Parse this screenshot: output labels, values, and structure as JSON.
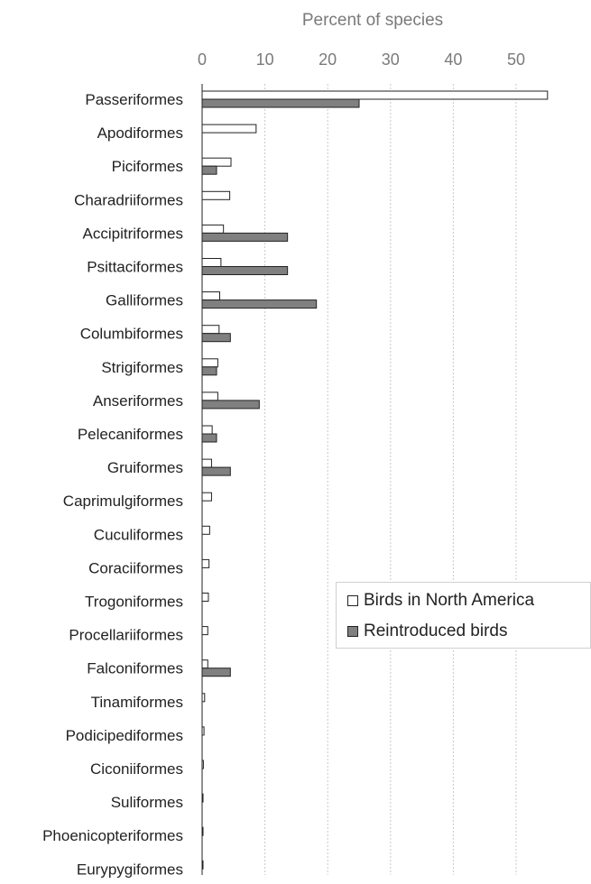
{
  "chart_data": {
    "type": "bar",
    "orientation": "horizontal",
    "title": "",
    "xlabel": "Percent of species",
    "ylabel": "",
    "xlim": [
      0,
      55
    ],
    "xticks": [
      0,
      10,
      20,
      30,
      40,
      50
    ],
    "grid": true,
    "legend_position": "right",
    "categories": [
      "Passeriformes",
      "Apodiformes",
      "Piciformes",
      "Charadriiformes",
      "Accipitriformes",
      "Psittaciformes",
      "Galliformes",
      "Columbiformes",
      "Strigiformes",
      "Anseriformes",
      "Pelecaniformes",
      "Gruiformes",
      "Caprimulgiformes",
      "Cuculiformes",
      "Coraciiformes",
      "Trogoniformes",
      "Procellariiformes",
      "Falconiformes",
      "Tinamiformes",
      "Podicipediformes",
      "Ciconiiformes",
      "Suliformes",
      "Phoenicopteriformes",
      "Eurypygiformes"
    ],
    "series": [
      {
        "name": "Birds in North America",
        "color": "#ffffff",
        "values": [
          55.0,
          8.6,
          4.6,
          4.4,
          3.4,
          3.0,
          2.8,
          2.7,
          2.5,
          2.5,
          1.6,
          1.5,
          1.5,
          1.2,
          1.1,
          1.0,
          0.9,
          0.9,
          0.4,
          0.3,
          0.2,
          0.1,
          0.1,
          0.1
        ]
      },
      {
        "name": "Reintroduced birds",
        "color": "#808080",
        "values": [
          25.0,
          0,
          2.3,
          0,
          13.6,
          13.6,
          18.2,
          4.5,
          2.3,
          9.1,
          2.3,
          4.5,
          0,
          0,
          0,
          0,
          0,
          4.5,
          0,
          0,
          0,
          0,
          0,
          0
        ]
      }
    ]
  }
}
